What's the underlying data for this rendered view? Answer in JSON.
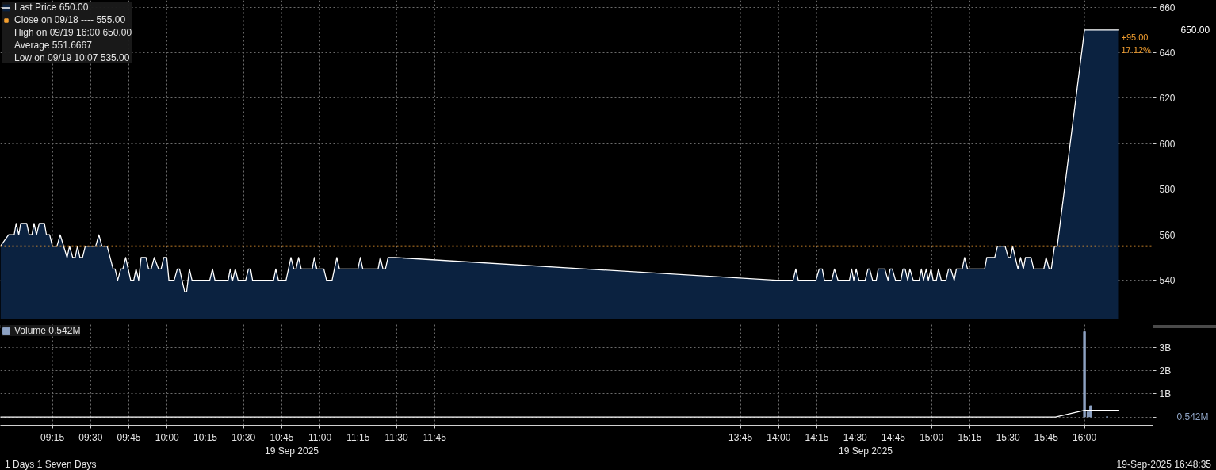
{
  "chart_data": [
    {
      "type": "area",
      "tick_labels": "y",
      "legend": "top left",
      "grid": true,
      "xlim": [
        8.91,
        16.448
      ],
      "xticks": [
        9.25,
        9.5,
        9.75,
        10,
        10.25,
        10.5,
        10.75,
        11,
        11.25,
        11.5,
        11.75,
        13.75,
        14,
        14.25,
        14.5,
        14.75,
        15,
        15.25,
        15.5,
        15.75,
        16
      ],
      "ylim": [
        523,
        663
      ],
      "yticks": [
        540,
        560,
        580,
        600,
        620,
        640,
        660
      ],
      "x": [
        8.91,
        8.963,
        9.0,
        9.013,
        9.03,
        9.043,
        9.082,
        9.098,
        9.116,
        9.13,
        9.146,
        9.164,
        9.198,
        9.211,
        9.232,
        9.25,
        9.28,
        9.301,
        9.346,
        9.362,
        9.383,
        9.399,
        9.414,
        9.43,
        9.447,
        9.465,
        9.533,
        9.554,
        9.574,
        9.608,
        9.647,
        9.66,
        9.677,
        9.697,
        9.711,
        9.729,
        9.762,
        9.782,
        9.797,
        9.814,
        9.83,
        9.862,
        9.879,
        9.896,
        9.916,
        9.944,
        9.961,
        9.978,
        9.998,
        10.012,
        10.046,
        10.067,
        10.081,
        10.115,
        10.128,
        10.146,
        10.163,
        10.279,
        10.297,
        10.313,
        10.399,
        10.413,
        10.429,
        10.446,
        10.464,
        10.514,
        10.532,
        10.546,
        10.559,
        10.696,
        10.711,
        10.728,
        10.778,
        10.81,
        10.829,
        10.843,
        10.86,
        10.877,
        10.949,
        10.963,
        10.979,
        11.025,
        11.043,
        11.079,
        11.11,
        11.127,
        11.248,
        11.264,
        11.28,
        11.38,
        11.394,
        11.412,
        11.428,
        11.445,
        11.494,
        13.984,
        14.094,
        14.112,
        14.128,
        14.244,
        14.265,
        14.285,
        14.299,
        14.347,
        14.365,
        14.388,
        14.463,
        14.477,
        14.491,
        14.507,
        14.525,
        14.566,
        14.584,
        14.595,
        14.614,
        14.638,
        14.651,
        14.694,
        14.715,
        14.729,
        14.743,
        14.764,
        14.799,
        14.813,
        14.827,
        14.844,
        14.858,
        14.88,
        14.919,
        14.933,
        14.947,
        14.965,
        14.979,
        14.996,
        15.01,
        15.031,
        15.045,
        15.063,
        15.094,
        15.111,
        15.125,
        15.148,
        15.162,
        15.2,
        15.216,
        15.235,
        15.347,
        15.361,
        15.413,
        15.431,
        15.481,
        15.502,
        15.516,
        15.53,
        15.565,
        15.582,
        15.6,
        15.614,
        15.65,
        15.668,
        15.734,
        15.749,
        15.769,
        15.783,
        15.804,
        15.822,
        16.0,
        16.225
      ],
      "series": [
        {
          "name": "Last Price 650.00",
          "color": "#0b2240",
          "values": [
            555,
            560,
            560,
            565,
            560,
            565,
            565,
            560,
            560,
            565,
            560,
            565,
            565,
            560,
            560,
            555,
            555,
            560,
            550,
            555,
            550,
            550,
            555,
            550,
            550,
            555,
            555,
            560,
            555,
            555,
            545,
            545,
            540,
            545,
            545,
            550,
            540,
            540,
            545,
            540,
            550,
            550,
            545,
            545,
            550,
            545,
            545,
            550,
            550,
            540,
            540,
            545,
            545,
            535,
            535,
            545,
            540,
            540,
            545,
            540,
            540,
            545,
            540,
            545,
            540,
            540,
            545,
            545,
            540,
            540,
            545,
            540,
            540,
            550,
            545,
            545,
            550,
            545,
            545,
            550,
            545,
            545,
            540,
            540,
            550,
            545,
            545,
            550,
            545,
            545,
            550,
            545,
            545,
            550,
            550,
            540,
            540,
            545,
            540,
            540,
            545,
            545,
            540,
            540,
            545,
            540,
            540,
            545,
            540,
            545,
            540,
            540,
            545,
            545,
            540,
            540,
            545,
            545,
            540,
            545,
            545,
            540,
            540,
            545,
            545,
            540,
            545,
            540,
            540,
            545,
            540,
            545,
            540,
            545,
            540,
            540,
            545,
            540,
            540,
            545,
            545,
            540,
            545,
            545,
            550,
            545,
            545,
            550,
            550,
            555,
            555,
            550,
            550,
            555,
            545,
            550,
            545,
            550,
            550,
            545,
            545,
            550,
            545,
            545,
            555,
            555,
            650,
            650
          ]
        }
      ],
      "ref_lines": [
        {
          "axis": "y",
          "value": 555,
          "label": "Close on 09/18 ---- 555.00",
          "color": "#f5a030",
          "line_style": "dotted"
        }
      ],
      "annotations": [
        "650.00",
        {
          "text": "+95.00",
          "x": 16.225,
          "y": 650
        },
        {
          "text": "17.12%",
          "x": 16.225,
          "y": 650
        },
        "High on 09/19 16:00 650.00",
        "Average 551.6667",
        "Low on 09/19 10:07 535.00"
      ]
    },
    {
      "type": "bar",
      "legend": "top left",
      "grid": true,
      "xlim": [
        8.91,
        16.448
      ],
      "xticks": [
        {
          "value": 9.25,
          "label": "09:15"
        },
        {
          "value": 9.5,
          "label": "09:30"
        },
        {
          "value": 9.75,
          "label": "09:45"
        },
        {
          "value": 10,
          "label": "10:00"
        },
        {
          "value": 10.25,
          "label": "10:15"
        },
        {
          "value": 10.5,
          "label": "10:30"
        },
        {
          "value": 10.75,
          "label": "10:45"
        },
        {
          "value": 11,
          "label": "11:00"
        },
        {
          "value": 11.25,
          "label": "11:15"
        },
        {
          "value": 11.5,
          "label": "11:30"
        },
        {
          "value": 11.75,
          "label": "11:45"
        },
        {
          "value": 13.75,
          "label": "13:45"
        },
        {
          "value": 14,
          "label": "14:00"
        },
        {
          "value": 14.25,
          "label": "14:15"
        },
        {
          "value": 14.5,
          "label": "14:30"
        },
        {
          "value": 14.75,
          "label": "14:45"
        },
        {
          "value": 15,
          "label": "15:00"
        },
        {
          "value": 15.25,
          "label": "15:15"
        },
        {
          "value": 15.5,
          "label": "15:30"
        },
        {
          "value": 15.75,
          "label": "15:45"
        },
        {
          "value": 16,
          "label": "16:00"
        }
      ],
      "ylim": [
        -360000000,
        4040000000
      ],
      "yticks": [
        {
          "value": 0,
          "label": null
        },
        {
          "value": 1000000000,
          "label": "1B"
        },
        {
          "value": 2000000000,
          "label": "2B"
        },
        {
          "value": 3000000000,
          "label": "3B"
        }
      ],
      "series": [
        {
          "name": "Volume 0.542M",
          "color": "#8da2c3",
          "x": [
            16.0,
            16.023,
            16.04,
            16.148
          ],
          "values": [
            3700000000,
            220000000,
            480000000,
            542000
          ]
        },
        {
          "type": "line",
          "color": "#ffffff",
          "x": [
            8.91,
            15.811,
            16.0,
            16.225
          ],
          "values": [
            0,
            0,
            290000000,
            290000000
          ]
        }
      ],
      "annotations": [
        "0.542M",
        "19 Sep 2025",
        "19 Sep 2025",
        "1 Days 1 Seven Days",
        "19-Sep-2025 16:48:35"
      ]
    }
  ]
}
